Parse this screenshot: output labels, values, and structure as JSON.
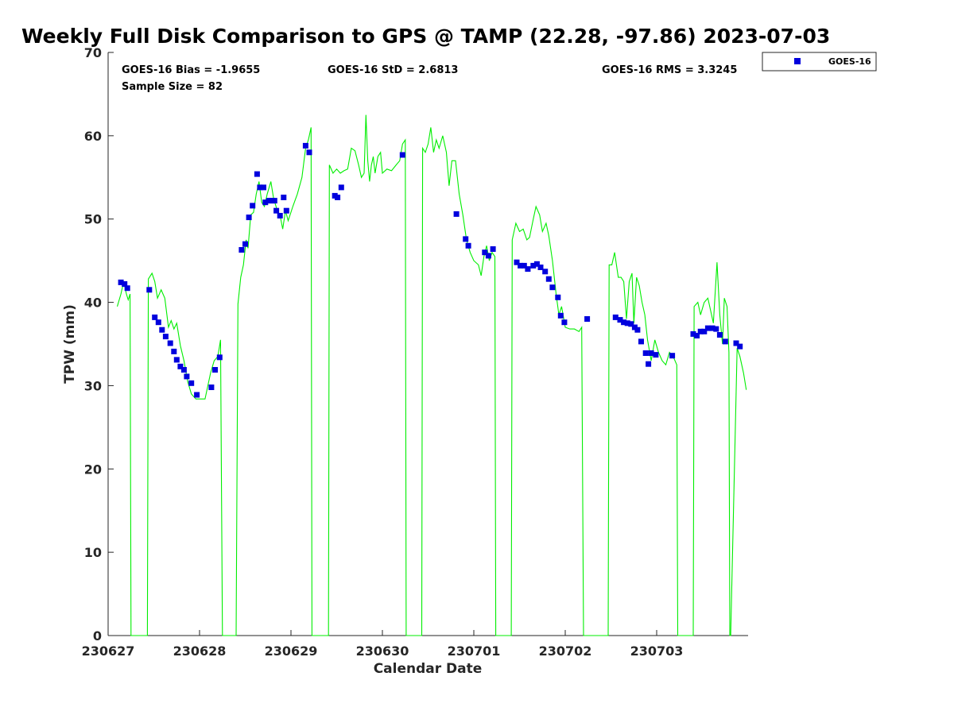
{
  "chart_data": {
    "type": "line",
    "title": "Weekly Full Disk Comparison to GPS @ TAMP (22.28, -97.86) 2023-07-03",
    "xlabel": "Calendar Date",
    "ylabel": "TPW (mm)",
    "xlim": [
      0,
      7
    ],
    "ylim": [
      0,
      70
    ],
    "y_ticks": [
      0,
      10,
      20,
      30,
      40,
      50,
      60,
      70
    ],
    "x_tick_labels": [
      "230627",
      "230628",
      "230629",
      "230630",
      "230701",
      "230702",
      "230703"
    ],
    "grid": false,
    "legend_position": "top-right, outside plot",
    "stats": {
      "bias": "GOES-16 Bias = -1.9655",
      "std": "GOES-16 StD = 2.6813",
      "rms": "GOES-16 RMS = 3.3245",
      "sample": "Sample Size = 82"
    },
    "series": [
      {
        "name": "GOES-16",
        "style": "markers",
        "color": "#0000dd",
        "points": [
          [
            0.14,
            42.4
          ],
          [
            0.18,
            42.2
          ],
          [
            0.21,
            41.7
          ],
          [
            0.45,
            41.5
          ],
          [
            0.51,
            38.2
          ],
          [
            0.55,
            37.6
          ],
          [
            0.59,
            36.7
          ],
          [
            0.63,
            35.9
          ],
          [
            0.68,
            35.1
          ],
          [
            0.72,
            34.1
          ],
          [
            0.75,
            33.1
          ],
          [
            0.79,
            32.3
          ],
          [
            0.83,
            31.9
          ],
          [
            0.86,
            31.1
          ],
          [
            0.91,
            30.3
          ],
          [
            0.97,
            28.9
          ],
          [
            1.13,
            29.8
          ],
          [
            1.17,
            31.9
          ],
          [
            1.22,
            33.4
          ],
          [
            1.46,
            46.3
          ],
          [
            1.5,
            47.0
          ],
          [
            1.54,
            50.2
          ],
          [
            1.58,
            51.6
          ],
          [
            1.63,
            55.4
          ],
          [
            1.66,
            53.8
          ],
          [
            1.7,
            53.8
          ],
          [
            1.72,
            52.0
          ],
          [
            1.76,
            52.2
          ],
          [
            1.79,
            52.2
          ],
          [
            1.82,
            52.2
          ],
          [
            1.84,
            51.0
          ],
          [
            1.88,
            50.4
          ],
          [
            1.92,
            52.6
          ],
          [
            1.95,
            51.0
          ],
          [
            2.16,
            58.8
          ],
          [
            2.2,
            58.0
          ],
          [
            2.48,
            52.8
          ],
          [
            2.51,
            52.6
          ],
          [
            2.55,
            53.8
          ],
          [
            3.22,
            57.7
          ],
          [
            3.81,
            50.6
          ],
          [
            3.91,
            47.6
          ],
          [
            3.94,
            46.8
          ],
          [
            4.12,
            46.0
          ],
          [
            4.16,
            45.6
          ],
          [
            4.21,
            46.4
          ],
          [
            4.47,
            44.8
          ],
          [
            4.51,
            44.4
          ],
          [
            4.55,
            44.4
          ],
          [
            4.59,
            44.0
          ],
          [
            4.65,
            44.4
          ],
          [
            4.69,
            44.6
          ],
          [
            4.73,
            44.2
          ],
          [
            4.78,
            43.7
          ],
          [
            4.82,
            42.8
          ],
          [
            4.86,
            41.8
          ],
          [
            4.92,
            40.6
          ],
          [
            4.95,
            38.4
          ],
          [
            4.99,
            37.6
          ],
          [
            5.24,
            38.0
          ],
          [
            5.55,
            38.2
          ],
          [
            5.6,
            37.9
          ],
          [
            5.64,
            37.6
          ],
          [
            5.68,
            37.5
          ],
          [
            5.72,
            37.4
          ],
          [
            5.76,
            37.0
          ],
          [
            5.79,
            36.7
          ],
          [
            5.83,
            35.3
          ],
          [
            5.88,
            33.9
          ],
          [
            5.91,
            32.6
          ],
          [
            5.94,
            33.9
          ],
          [
            5.99,
            33.7
          ],
          [
            6.17,
            33.6
          ],
          [
            6.4,
            36.2
          ],
          [
            6.44,
            36.0
          ],
          [
            6.48,
            36.5
          ],
          [
            6.52,
            36.5
          ],
          [
            6.56,
            36.9
          ],
          [
            6.61,
            36.9
          ],
          [
            6.65,
            36.8
          ],
          [
            6.69,
            36.1
          ],
          [
            6.75,
            35.3
          ],
          [
            6.87,
            35.1
          ],
          [
            6.91,
            34.7
          ]
        ]
      },
      {
        "name": "GPS",
        "style": "line",
        "color": "#00ee00",
        "points": [
          [
            0.1,
            39.5
          ],
          [
            0.14,
            41.0
          ],
          [
            0.17,
            42.5
          ],
          [
            0.2,
            41.0
          ],
          [
            0.22,
            40.3
          ],
          [
            0.24,
            41.0
          ],
          [
            0.25,
            0
          ],
          [
            0.43,
            0
          ],
          [
            0.44,
            42.8
          ],
          [
            0.48,
            43.5
          ],
          [
            0.51,
            42.5
          ],
          [
            0.54,
            40.5
          ],
          [
            0.58,
            41.5
          ],
          [
            0.62,
            40.5
          ],
          [
            0.66,
            37.0
          ],
          [
            0.69,
            37.8
          ],
          [
            0.72,
            36.8
          ],
          [
            0.75,
            37.5
          ],
          [
            0.79,
            34.8
          ],
          [
            0.83,
            33.0
          ],
          [
            0.87,
            30.5
          ],
          [
            0.91,
            29.0
          ],
          [
            0.96,
            28.4
          ],
          [
            1.0,
            28.4
          ],
          [
            1.06,
            28.4
          ],
          [
            1.12,
            31.5
          ],
          [
            1.16,
            33.0
          ],
          [
            1.2,
            33.5
          ],
          [
            1.23,
            35.5
          ],
          [
            1.25,
            0
          ],
          [
            1.4,
            0
          ],
          [
            1.42,
            39.8
          ],
          [
            1.45,
            43.0
          ],
          [
            1.48,
            44.5
          ],
          [
            1.51,
            47.5
          ],
          [
            1.53,
            46.5
          ],
          [
            1.56,
            50.5
          ],
          [
            1.59,
            50.8
          ],
          [
            1.62,
            53.0
          ],
          [
            1.65,
            54.5
          ],
          [
            1.68,
            52.0
          ],
          [
            1.71,
            51.5
          ],
          [
            1.74,
            53.0
          ],
          [
            1.78,
            54.5
          ],
          [
            1.81,
            52.5
          ],
          [
            1.85,
            51.0
          ],
          [
            1.88,
            50.5
          ],
          [
            1.91,
            48.8
          ],
          [
            1.94,
            51.0
          ],
          [
            1.97,
            49.8
          ],
          [
            2.02,
            51.5
          ],
          [
            2.07,
            53.0
          ],
          [
            2.12,
            55.0
          ],
          [
            2.16,
            58.5
          ],
          [
            2.19,
            59.5
          ],
          [
            2.22,
            61.0
          ],
          [
            2.23,
            0
          ],
          [
            2.41,
            0
          ],
          [
            2.42,
            56.5
          ],
          [
            2.46,
            55.5
          ],
          [
            2.5,
            56.0
          ],
          [
            2.54,
            55.5
          ],
          [
            2.58,
            55.8
          ],
          [
            2.62,
            56.0
          ],
          [
            2.66,
            58.5
          ],
          [
            2.7,
            58.2
          ],
          [
            2.74,
            56.5
          ],
          [
            2.77,
            55.0
          ],
          [
            2.8,
            55.5
          ],
          [
            2.82,
            62.5
          ],
          [
            2.84,
            57.0
          ],
          [
            2.86,
            54.5
          ],
          [
            2.88,
            56.5
          ],
          [
            2.9,
            57.5
          ],
          [
            2.92,
            55.5
          ],
          [
            2.95,
            57.5
          ],
          [
            2.98,
            58.0
          ],
          [
            3.0,
            55.5
          ],
          [
            3.05,
            56.0
          ],
          [
            3.1,
            55.8
          ],
          [
            3.15,
            56.5
          ],
          [
            3.19,
            57.0
          ],
          [
            3.22,
            59.0
          ],
          [
            3.25,
            59.5
          ],
          [
            3.26,
            0
          ],
          [
            3.43,
            0
          ],
          [
            3.44,
            58.5
          ],
          [
            3.47,
            58.0
          ],
          [
            3.5,
            59.0
          ],
          [
            3.53,
            61.0
          ],
          [
            3.56,
            58.0
          ],
          [
            3.59,
            59.5
          ],
          [
            3.62,
            58.5
          ],
          [
            3.66,
            60.0
          ],
          [
            3.7,
            58.0
          ],
          [
            3.73,
            54.0
          ],
          [
            3.76,
            57.0
          ],
          [
            3.8,
            57.0
          ],
          [
            3.84,
            53.0
          ],
          [
            3.88,
            50.5
          ],
          [
            3.92,
            47.5
          ],
          [
            3.96,
            46.0
          ],
          [
            4.0,
            45.0
          ],
          [
            4.05,
            44.5
          ],
          [
            4.08,
            43.2
          ],
          [
            4.11,
            45.5
          ],
          [
            4.14,
            46.8
          ],
          [
            4.17,
            45.0
          ],
          [
            4.2,
            46.0
          ],
          [
            4.23,
            45.5
          ],
          [
            4.24,
            0
          ],
          [
            4.41,
            0
          ],
          [
            4.42,
            47.5
          ],
          [
            4.46,
            49.5
          ],
          [
            4.5,
            48.5
          ],
          [
            4.54,
            48.8
          ],
          [
            4.58,
            47.5
          ],
          [
            4.61,
            47.8
          ],
          [
            4.65,
            50.0
          ],
          [
            4.68,
            51.5
          ],
          [
            4.72,
            50.5
          ],
          [
            4.75,
            48.5
          ],
          [
            4.79,
            49.5
          ],
          [
            4.82,
            48.0
          ],
          [
            4.86,
            45.0
          ],
          [
            4.9,
            41.0
          ],
          [
            4.93,
            38.5
          ],
          [
            4.96,
            39.5
          ],
          [
            5.0,
            37.0
          ],
          [
            5.05,
            36.8
          ],
          [
            5.1,
            36.8
          ],
          [
            5.15,
            36.5
          ],
          [
            5.18,
            37.0
          ],
          [
            5.2,
            0
          ],
          [
            5.47,
            0
          ],
          [
            5.48,
            44.5
          ],
          [
            5.51,
            44.5
          ],
          [
            5.54,
            46.0
          ],
          [
            5.58,
            43.0
          ],
          [
            5.61,
            43.0
          ],
          [
            5.64,
            42.5
          ],
          [
            5.67,
            38.0
          ],
          [
            5.7,
            42.5
          ],
          [
            5.73,
            43.5
          ],
          [
            5.75,
            37.5
          ],
          [
            5.78,
            43.0
          ],
          [
            5.81,
            42.0
          ],
          [
            5.84,
            40.0
          ],
          [
            5.87,
            38.5
          ],
          [
            5.9,
            35.5
          ],
          [
            5.94,
            33.0
          ],
          [
            5.98,
            35.5
          ],
          [
            6.02,
            34.0
          ],
          [
            6.06,
            33.0
          ],
          [
            6.1,
            32.5
          ],
          [
            6.14,
            34.0
          ],
          [
            6.18,
            33.5
          ],
          [
            6.22,
            32.5
          ],
          [
            6.23,
            0
          ],
          [
            6.4,
            0
          ],
          [
            6.41,
            39.5
          ],
          [
            6.45,
            40.0
          ],
          [
            6.48,
            38.5
          ],
          [
            6.52,
            40.0
          ],
          [
            6.56,
            40.5
          ],
          [
            6.59,
            39.0
          ],
          [
            6.62,
            37.5
          ],
          [
            6.66,
            44.8
          ],
          [
            6.69,
            38.5
          ],
          [
            6.72,
            35.0
          ],
          [
            6.74,
            40.5
          ],
          [
            6.77,
            39.5
          ],
          [
            6.79,
            34.0
          ],
          [
            6.8,
            0
          ],
          [
            6.81,
            0
          ],
          [
            6.85,
            20.0
          ],
          [
            6.88,
            34.5
          ],
          [
            6.91,
            33.5
          ],
          [
            6.95,
            31.5
          ],
          [
            6.98,
            29.5
          ]
        ]
      }
    ]
  }
}
